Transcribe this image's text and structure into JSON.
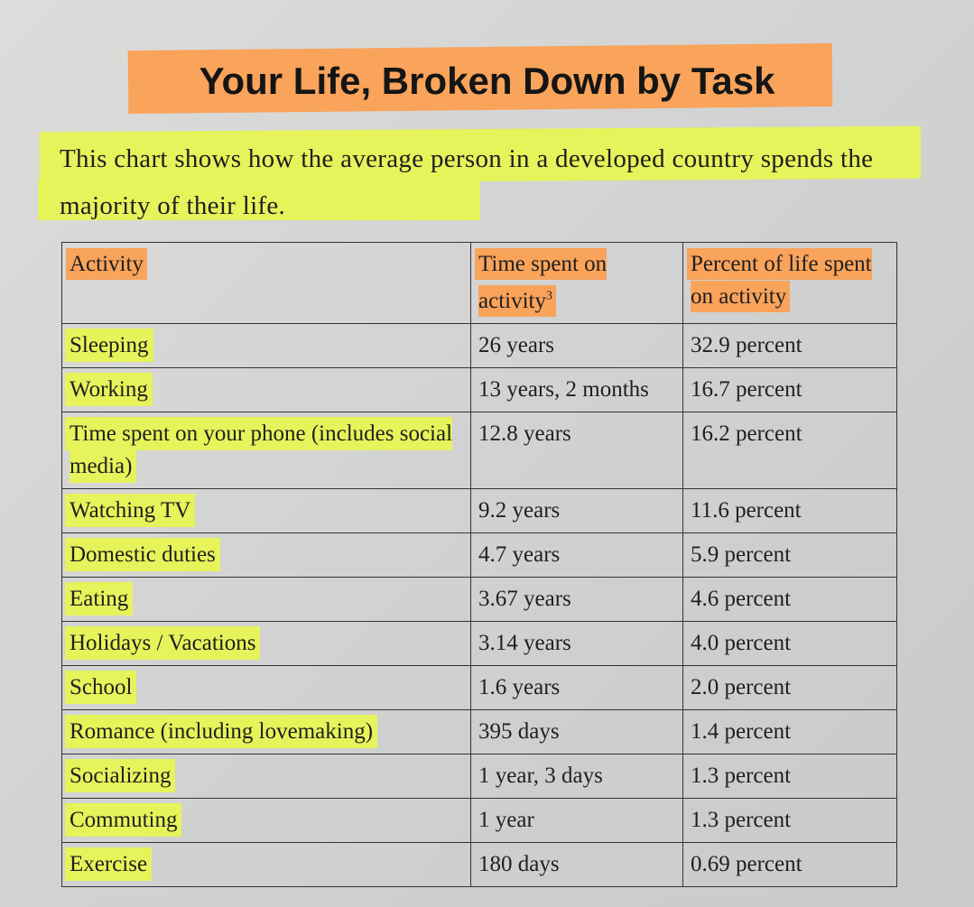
{
  "title": "Your Life, Broken Down by Task",
  "intro": "This chart shows how the average person in a developed country spends the majority of their life.",
  "table": {
    "headers": [
      "Activity",
      "Time spent on activity",
      "Percent of life spent on activity"
    ],
    "header_footnote": "3",
    "rows": [
      [
        "Sleeping",
        "26 years",
        "32.9 percent"
      ],
      [
        "Working",
        "13 years, 2 months",
        "16.7 percent"
      ],
      [
        "Time spent on your phone (includes social media)",
        "12.8 years",
        "16.2 percent"
      ],
      [
        "Watching TV",
        "9.2 years",
        "11.6 percent"
      ],
      [
        "Domestic duties",
        "4.7 years",
        "5.9 percent"
      ],
      [
        "Eating",
        "3.67 years",
        "4.6 percent"
      ],
      [
        "Holidays / Vacations",
        "3.14 years",
        "4.0 percent"
      ],
      [
        "School",
        "1.6 years",
        "2.0 percent"
      ],
      [
        "Romance (including lovemaking)",
        "395 days",
        "1.4 percent"
      ],
      [
        "Socializing",
        "1 year, 3 days",
        "1.3 percent"
      ],
      [
        "Commuting",
        "1 year",
        "1.3 percent"
      ],
      [
        "Exercise",
        "180 days",
        "0.69 percent"
      ]
    ]
  }
}
